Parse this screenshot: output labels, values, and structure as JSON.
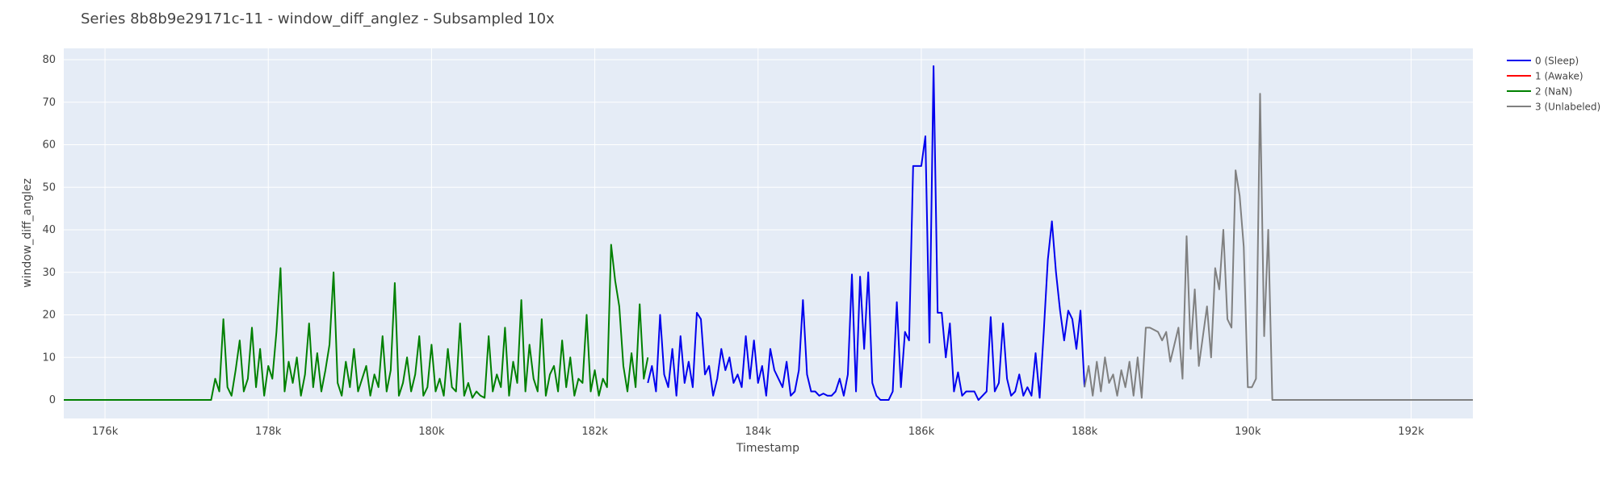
{
  "chart_data": {
    "type": "line",
    "title": "Series 8b8b9e29171c-11 - window_diff_anglez - Subsampled 10x",
    "x_label": "Timestamp",
    "y_label": "window_diff_anglez",
    "xlim": [
      175495,
      192757
    ],
    "ylim": [
      -4.35,
      82.66
    ],
    "xticks": [
      {
        "value": 176000,
        "label": "176k"
      },
      {
        "value": 178000,
        "label": "178k"
      },
      {
        "value": 180000,
        "label": "180k"
      },
      {
        "value": 182000,
        "label": "182k"
      },
      {
        "value": 184000,
        "label": "184k"
      },
      {
        "value": 186000,
        "label": "186k"
      },
      {
        "value": 188000,
        "label": "188k"
      },
      {
        "value": 190000,
        "label": "190k"
      },
      {
        "value": 192000,
        "label": "192k"
      }
    ],
    "yticks": [
      0,
      10,
      20,
      30,
      40,
      50,
      60,
      70,
      80
    ],
    "grid": true,
    "legend": "right",
    "series": [
      {
        "name": "0 (Sleep)",
        "color": "#0000ee",
        "x": [
          182650,
          182700,
          182750,
          182800,
          182850,
          182900,
          182950,
          183000,
          183050,
          183100,
          183150,
          183200,
          183250,
          183300,
          183350,
          183400,
          183450,
          183500,
          183550,
          183600,
          183650,
          183700,
          183750,
          183800,
          183850,
          183900,
          183950,
          184000,
          184050,
          184100,
          184150,
          184200,
          184250,
          184300,
          184350,
          184400,
          184450,
          184500,
          184550,
          184600,
          184650,
          184700,
          184750,
          184800,
          184850,
          184900,
          184950,
          185000,
          185050,
          185100,
          185150,
          185200,
          185250,
          185300,
          185350,
          185400,
          185450,
          185500,
          185550,
          185600,
          185650,
          185700,
          185750,
          185800,
          185850,
          185900,
          185950,
          186000,
          186050,
          186100,
          186150,
          186200,
          186250,
          186300,
          186350,
          186400,
          186450,
          186500,
          186550,
          186600,
          186650,
          186700,
          186750,
          186800,
          186850,
          186900,
          186950,
          187000,
          187050,
          187100,
          187150,
          187200,
          187250,
          187300,
          187350,
          187400,
          187450,
          187500,
          187550,
          187600,
          187650,
          187700,
          187750,
          187800,
          187850,
          187900,
          187950,
          188000
        ],
        "values": [
          4,
          8,
          2,
          20,
          6,
          3,
          12,
          1,
          15,
          4,
          9,
          3,
          20.5,
          19,
          6,
          8,
          1,
          5,
          12,
          7,
          10,
          4,
          6,
          3,
          15,
          5,
          14,
          4,
          8,
          1,
          12,
          7,
          5,
          3,
          9,
          1,
          2,
          7,
          23.5,
          6,
          2,
          2,
          1,
          1.5,
          1,
          1,
          2,
          5,
          1,
          6,
          29.5,
          2,
          29,
          12,
          30,
          4,
          1,
          0,
          0,
          0,
          2,
          23,
          3,
          16,
          14,
          55,
          55,
          55,
          62,
          13.5,
          78.5,
          20.5,
          20.5,
          10,
          18,
          2,
          6.5,
          1,
          2,
          2,
          2,
          0,
          1,
          2,
          19.5,
          2,
          4,
          18,
          5,
          1,
          2,
          6,
          1,
          3,
          1,
          11,
          0.5,
          16,
          33,
          42,
          30,
          21,
          14,
          21,
          19,
          12,
          21,
          3
        ]
      },
      {
        "name": "1 (Awake)",
        "color": "#ff0000",
        "x": [],
        "values": []
      },
      {
        "name": "2 (NaN)",
        "color": "#008000",
        "x": [
          175495,
          177300,
          177350,
          177400,
          177450,
          177500,
          177550,
          177600,
          177650,
          177700,
          177750,
          177800,
          177850,
          177900,
          177950,
          178000,
          178050,
          178100,
          178150,
          178200,
          178250,
          178300,
          178350,
          178400,
          178450,
          178500,
          178550,
          178600,
          178650,
          178700,
          178750,
          178800,
          178850,
          178900,
          178950,
          179000,
          179050,
          179100,
          179150,
          179200,
          179250,
          179300,
          179350,
          179400,
          179450,
          179500,
          179550,
          179600,
          179650,
          179700,
          179750,
          179800,
          179850,
          179900,
          179950,
          180000,
          180050,
          180100,
          180150,
          180200,
          180250,
          180300,
          180350,
          180400,
          180450,
          180500,
          180550,
          180600,
          180650,
          180700,
          180750,
          180800,
          180850,
          180900,
          180950,
          181000,
          181050,
          181100,
          181150,
          181200,
          181250,
          181300,
          181350,
          181400,
          181450,
          181500,
          181550,
          181600,
          181650,
          181700,
          181750,
          181800,
          181850,
          181900,
          181950,
          182000,
          182050,
          182100,
          182150,
          182200,
          182250,
          182300,
          182350,
          182400,
          182450,
          182500,
          182550,
          182600,
          182650
        ],
        "values": [
          0,
          0,
          5,
          2,
          19,
          3,
          1,
          7,
          14,
          2,
          5,
          17,
          3,
          12,
          1,
          8,
          5,
          16,
          31,
          2,
          9,
          4,
          10,
          1,
          6,
          18,
          3,
          11,
          2,
          7,
          13,
          30,
          4,
          1,
          9,
          3,
          12,
          2,
          5,
          8,
          1,
          6,
          3,
          15,
          2,
          7,
          27.5,
          1,
          4,
          10,
          2,
          6,
          15,
          1,
          3,
          13,
          2,
          5,
          1,
          12,
          3,
          2,
          18,
          1,
          4,
          0.5,
          2,
          1,
          0.5,
          15,
          2,
          6,
          3,
          17,
          1,
          9,
          4,
          23.5,
          2,
          13,
          5,
          2,
          19,
          1,
          6,
          8,
          2,
          14,
          3,
          10,
          1,
          5,
          4,
          20,
          2,
          7,
          1,
          5,
          3,
          36.5,
          28,
          22,
          8,
          2,
          11,
          3,
          22.5,
          5,
          10
        ]
      },
      {
        "name": "3 (Unlabeled)",
        "color": "#808080",
        "x": [
          188000,
          188050,
          188100,
          188150,
          188200,
          188250,
          188300,
          188350,
          188400,
          188450,
          188500,
          188550,
          188600,
          188650,
          188700,
          188750,
          188800,
          188850,
          188900,
          188950,
          189000,
          189050,
          189100,
          189150,
          189200,
          189250,
          189300,
          189350,
          189400,
          189450,
          189500,
          189550,
          189600,
          189650,
          189700,
          189750,
          189800,
          189850,
          189900,
          189950,
          190000,
          190050,
          190100,
          190150,
          190200,
          190250,
          190300,
          192757
        ],
        "values": [
          3,
          8,
          1,
          9,
          2,
          10,
          4,
          6,
          1,
          7,
          3,
          9,
          1,
          10,
          0.5,
          17,
          17,
          16.5,
          16,
          14,
          16,
          9,
          13,
          17,
          5,
          38.5,
          12,
          26,
          8,
          15,
          22,
          10,
          31,
          26,
          40,
          19,
          17,
          54,
          48,
          36,
          3,
          3,
          5,
          72,
          15,
          40,
          0,
          0
        ]
      }
    ]
  }
}
